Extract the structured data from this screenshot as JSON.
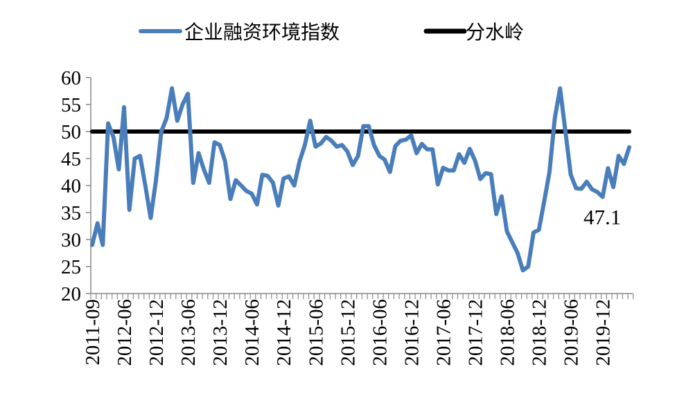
{
  "chart_data": {
    "type": "line",
    "title": "",
    "xlabel": "",
    "ylabel": "",
    "ylim": [
      20,
      60
    ],
    "yticks": [
      20,
      25,
      30,
      35,
      40,
      45,
      50,
      55,
      60
    ],
    "legend_position": "top",
    "x_tick_labels": [
      "2011-09",
      "2012-06",
      "2012-12",
      "2013-06",
      "2013-12",
      "2014-06",
      "2014-12",
      "2015-06",
      "2015-12",
      "2016-06",
      "2016-12",
      "2017-06",
      "2017-12",
      "2018-06",
      "2018-12",
      "2019-06",
      "2019-12"
    ],
    "x_tick_label_every": 6,
    "series": [
      {
        "name": "企业融资环境指数",
        "color": "#4a7ebb",
        "values": [
          29,
          33,
          29,
          51.5,
          49,
          43,
          54.5,
          35.5,
          45,
          45.5,
          40,
          34,
          41,
          50,
          52.5,
          58,
          52,
          55,
          57,
          40.5,
          46,
          43,
          40.5,
          48,
          47.5,
          44.5,
          37.5,
          41,
          40,
          39,
          38.5,
          36.5,
          42,
          41.8,
          40.5,
          36.3,
          41.3,
          41.7,
          40,
          44.5,
          47.5,
          52,
          47.2,
          47.8,
          49,
          48.3,
          47.2,
          47.5,
          46.3,
          43.8,
          45.5,
          51,
          51,
          47.5,
          45.5,
          44.8,
          42.5,
          47.3,
          48.3,
          48.5,
          49.3,
          46,
          47.7,
          46.7,
          46.7,
          40.2,
          43.3,
          42.8,
          42.8,
          45.8,
          44.2,
          46.8,
          44.6,
          41.2,
          42.3,
          42.1,
          34.7,
          38,
          31.5,
          29.5,
          27.5,
          24.3,
          25,
          31.3,
          31.8,
          37,
          42.5,
          52.5,
          58,
          50,
          42,
          39.5,
          39.4,
          40.7,
          39.3,
          38.8,
          37.9,
          43.2,
          39.7,
          45.5,
          44,
          47.1
        ]
      },
      {
        "name": "分水岭",
        "color": "#000000",
        "constant": 50
      }
    ],
    "annotations": [
      {
        "text": "47.1",
        "target": "last point"
      }
    ]
  }
}
